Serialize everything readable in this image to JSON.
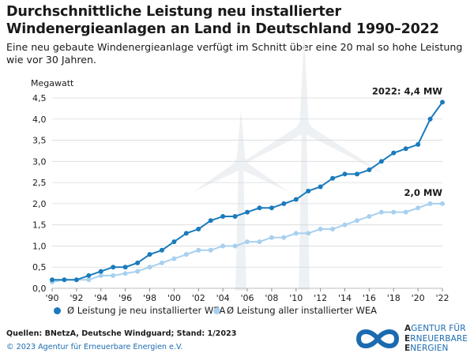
{
  "header": {
    "title": "Durchschnittliche Leistung neu installierter Windenergieanlagen an Land in Deutschland 1990–2022",
    "subtitle": "Eine neu gebaute Windenergieanlage verfügt im Schnitt über eine 20 mal so hohe Leistung wie vor 30 Jahren."
  },
  "chart_data": {
    "type": "line",
    "ylabel": "Megawatt",
    "ylim": [
      0,
      4.5
    ],
    "yticks": [
      "0,0",
      "0,5",
      "1,0",
      "1,5",
      "2,0",
      "2,5",
      "3,0",
      "3,5",
      "4,0",
      "4,5"
    ],
    "x": [
      1990,
      1991,
      1992,
      1993,
      1994,
      1995,
      1996,
      1997,
      1998,
      1999,
      2000,
      2001,
      2002,
      2003,
      2004,
      2005,
      2006,
      2007,
      2008,
      2009,
      2010,
      2011,
      2012,
      2013,
      2014,
      2015,
      2016,
      2017,
      2018,
      2019,
      2020,
      2021,
      2022
    ],
    "xticks": [
      "'90",
      "'92",
      "'94",
      "'96",
      "'98",
      "'00",
      "'02",
      "'04",
      "'06",
      "'08",
      "'10",
      "'12",
      "'14",
      "'16",
      "'18",
      "'20",
      "'22"
    ],
    "grid": true,
    "series": [
      {
        "name": "Ø Leistung je neu installierter WEA",
        "color": "#1a7bbd",
        "values": [
          0.2,
          0.2,
          0.2,
          0.3,
          0.4,
          0.5,
          0.5,
          0.6,
          0.8,
          0.9,
          1.1,
          1.3,
          1.4,
          1.6,
          1.7,
          1.7,
          1.8,
          1.9,
          1.9,
          2.0,
          2.1,
          2.3,
          2.4,
          2.6,
          2.7,
          2.7,
          2.8,
          3.0,
          3.2,
          3.3,
          3.4,
          4.0,
          4.4
        ]
      },
      {
        "name": "Ø Leistung aller installierter WEA",
        "color": "#a8d0ef",
        "values": [
          0.15,
          0.2,
          0.2,
          0.2,
          0.3,
          0.3,
          0.35,
          0.4,
          0.5,
          0.6,
          0.7,
          0.8,
          0.9,
          0.9,
          1.0,
          1.0,
          1.1,
          1.1,
          1.2,
          1.2,
          1.3,
          1.3,
          1.4,
          1.4,
          1.5,
          1.6,
          1.7,
          1.8,
          1.8,
          1.8,
          1.9,
          2.0,
          2.0
        ]
      }
    ],
    "annotations": [
      {
        "text": "2022: 4,4 MW",
        "series": 0
      },
      {
        "text": "2,0 MW",
        "series": 1
      }
    ]
  },
  "footer": {
    "sources": "Quellen: BNetzA, Deutsche Windguard; Stand: 1/2023",
    "copyright": "© 2023 Agentur für Erneuerbare Energien e.V.",
    "logo_line1_initial": "A",
    "logo_line1_rest": "GENTUR FÜR",
    "logo_line2_initial": "E",
    "logo_line2_rest": "RNEUERBARE",
    "logo_line3_initial": "E",
    "logo_line3_rest": "NERGIEN",
    "logo_color": "#1a6bb0"
  }
}
